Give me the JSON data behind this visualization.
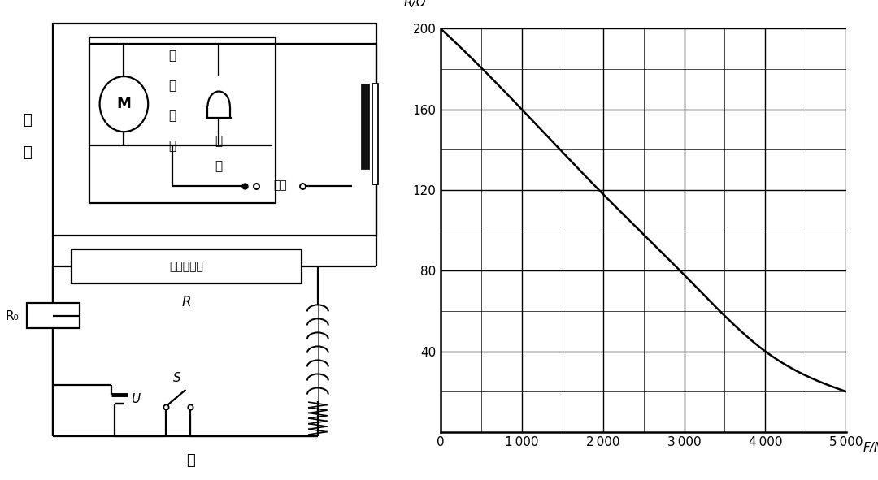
{
  "graph_xlim": [
    0,
    5000
  ],
  "graph_ylim": [
    0,
    200
  ],
  "graph_xticks": [
    0,
    1000,
    2000,
    3000,
    4000,
    5000
  ],
  "graph_xtick_labels": [
    "0",
    "1 000",
    "2 000",
    "3 000",
    "4 000",
    "5 000"
  ],
  "graph_yticks": [
    40,
    80,
    120,
    160,
    200
  ],
  "graph_ytick_labels": [
    "40",
    "80",
    "120",
    "160",
    "200"
  ],
  "xlabel": "F/N",
  "ylabel": "R/Ω",
  "sublabel_right": "乙",
  "curve_x": [
    0,
    1000,
    2000,
    3000,
    4000,
    4500,
    5000
  ],
  "curve_y": [
    200,
    160,
    118,
    78,
    40,
    28,
    20
  ],
  "grid_major_lw": 1.0,
  "grid_minor_lw": 0.5,
  "lw": 1.6,
  "line_color": "#000000",
  "bg_color": "#ffffff"
}
